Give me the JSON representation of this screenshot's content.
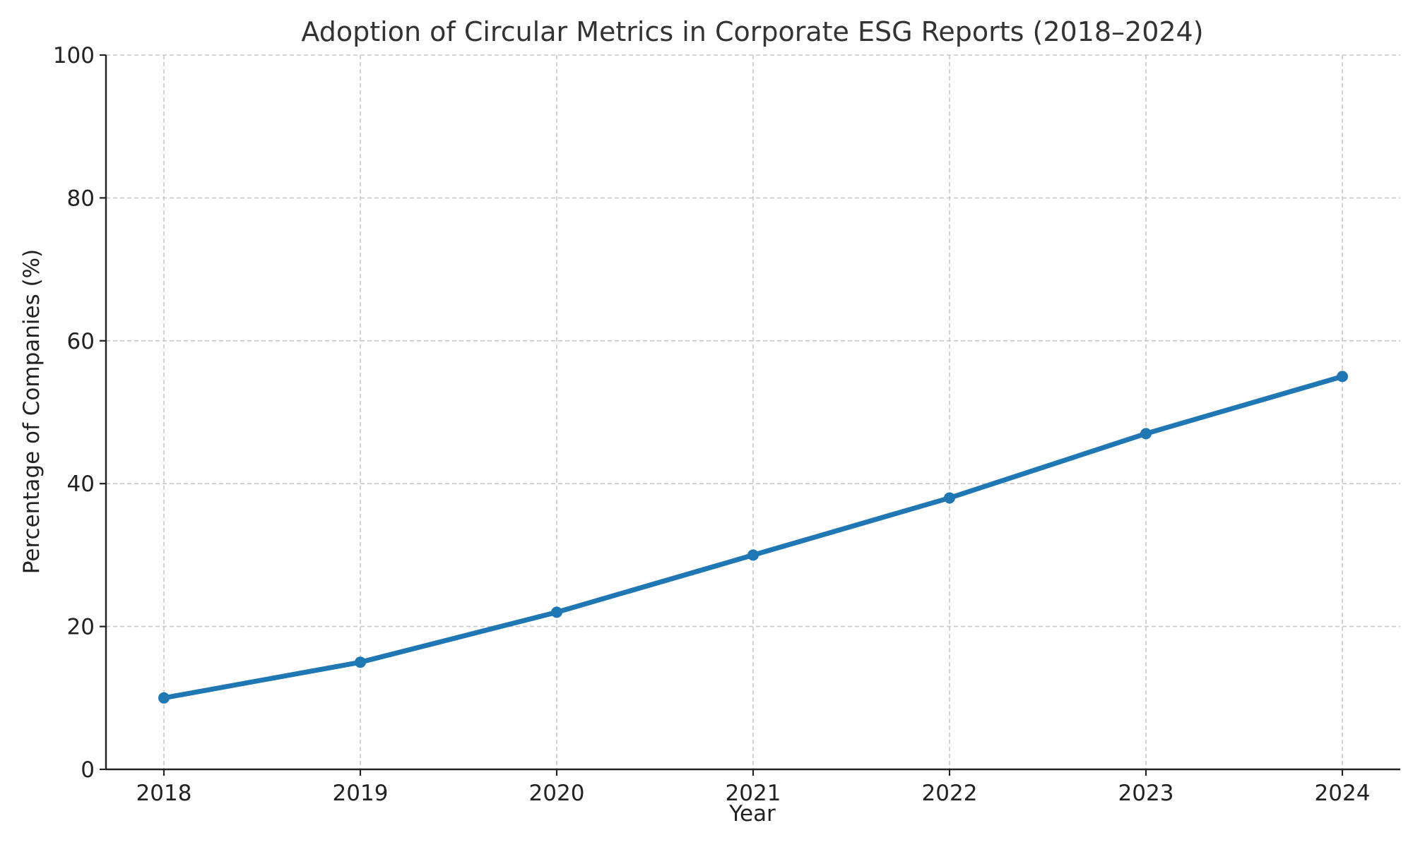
{
  "chart_data": {
    "type": "line",
    "title": "Adoption of Circular Metrics in Corporate ESG Reports (2018–2024)",
    "xlabel": "Year",
    "ylabel": "Percentage of Companies (%)",
    "x": [
      "2018",
      "2019",
      "2020",
      "2021",
      "2022",
      "2023",
      "2024"
    ],
    "y_ticks": [
      "0",
      "20",
      "40",
      "60",
      "80",
      "100"
    ],
    "ylim": [
      0,
      100
    ],
    "grid": true,
    "series": [
      {
        "values": [
          10,
          15,
          22,
          30,
          38,
          47,
          55
        ],
        "color": "#1f77b4",
        "marker": "circle"
      }
    ]
  }
}
